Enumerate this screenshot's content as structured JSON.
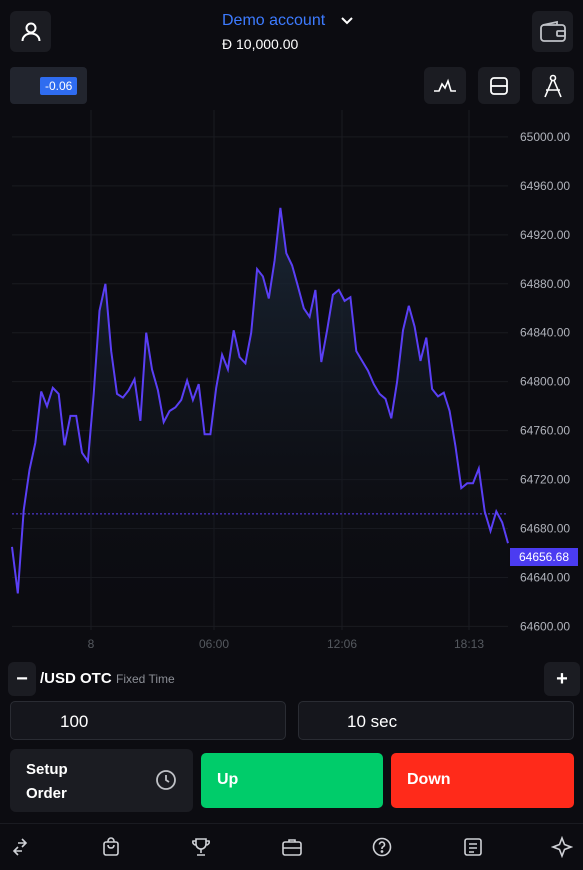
{
  "header": {
    "account_name": "Demo account",
    "balance": "Đ 10,000.00",
    "icons": [
      "user-icon",
      "chevron-down-icon",
      "wallet-icon"
    ]
  },
  "toolbar": {
    "price_change": "-0.06",
    "icons": [
      "indicator-icon",
      "chart-type-icon",
      "drawing-tools-icon"
    ]
  },
  "chart_data": {
    "type": "line",
    "y_ticks": [
      "65000.00",
      "64960.00",
      "64920.00",
      "64880.00",
      "64840.00",
      "64800.00",
      "64760.00",
      "64720.00",
      "64680.00",
      "64640.00",
      "64600.00"
    ],
    "x_ticks": [
      "8",
      "06:00",
      "12:06",
      "18:13"
    ],
    "current_price": "64656.68",
    "current_price_value": 64656.68,
    "reference_line_value": 64692,
    "ylim": [
      64593,
      65022
    ],
    "line_color": "#5a3ff5",
    "values": [
      64665,
      64627,
      64695,
      64728,
      64750,
      64792,
      64780,
      64795,
      64790,
      64748,
      64772,
      64772,
      64742,
      64735,
      64790,
      64858,
      64880,
      64825,
      64790,
      64787,
      64793,
      64802,
      64768,
      64840,
      64810,
      64793,
      64767,
      64776,
      64779,
      64785,
      64801,
      64785,
      64798,
      64757,
      64757,
      64795,
      64822,
      64810,
      64842,
      64820,
      64815,
      64840,
      64892,
      64886,
      64868,
      64899,
      64942,
      64905,
      64895,
      64878,
      64860,
      64853,
      64875,
      64816,
      64842,
      64871,
      64875,
      64866,
      64869,
      64825,
      64817,
      64809,
      64798,
      64790,
      64786,
      64770,
      64800,
      64842,
      64862,
      64845,
      64817,
      64836,
      64794,
      64788,
      64791,
      64776,
      64747,
      64713,
      64717,
      64717,
      64729,
      64694,
      64678,
      64694,
      64685,
      64668
    ]
  },
  "asset": {
    "name": "/USD OTC",
    "mode": "Fixed Time",
    "minus_label": "−",
    "plus_label": "+"
  },
  "order": {
    "amount": "100",
    "duration": "10 sec",
    "setup_label": "Setup Order",
    "up_label": "Up",
    "down_label": "Down"
  },
  "nav": {
    "icons": [
      "swap-icon",
      "shop-icon",
      "trophy-icon",
      "portfolio-icon",
      "help-icon",
      "news-icon",
      "sparkle-icon"
    ]
  },
  "colors": {
    "background": "#0c0c11",
    "accent_blue": "#3d7bff",
    "up_green": "#00cc6a",
    "down_red": "#ff2a1a",
    "price_tag": "#4b3cf1"
  }
}
